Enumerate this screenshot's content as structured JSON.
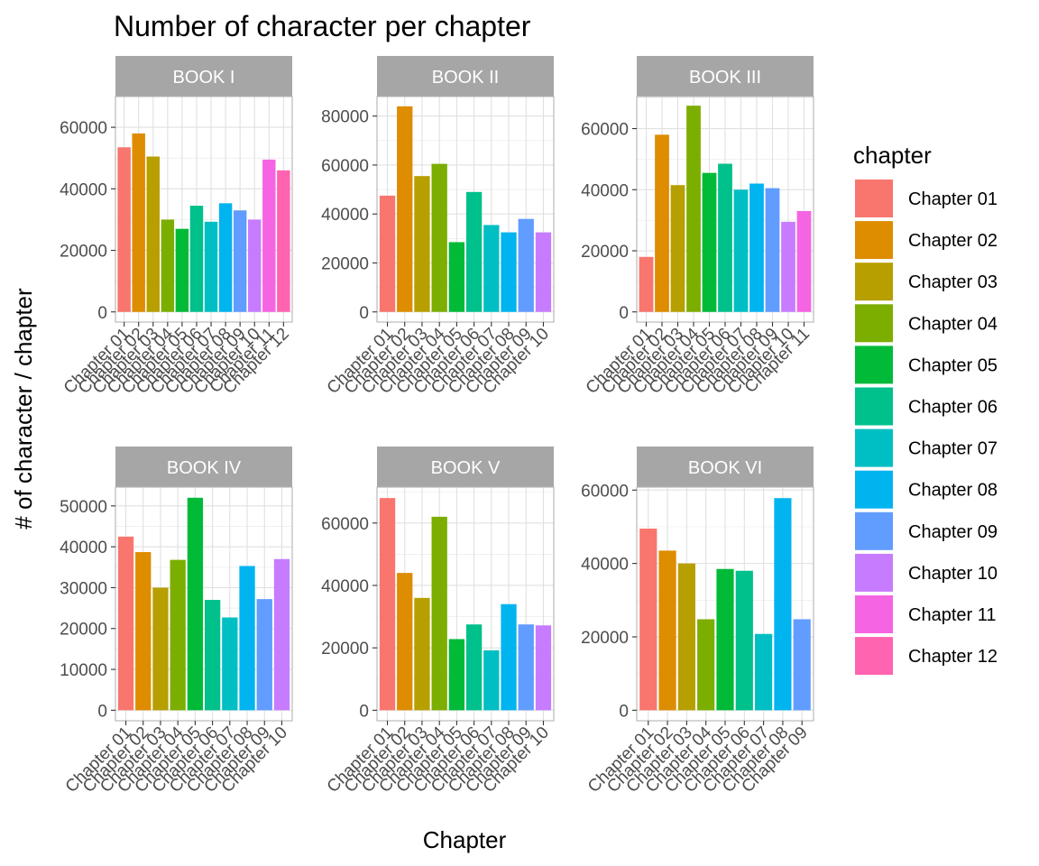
{
  "title": "Number of character per chapter",
  "xlabel": "Chapter",
  "ylabel": "# of character / chapter",
  "legend": {
    "title": "chapter",
    "entries": [
      "Chapter 01",
      "Chapter 02",
      "Chapter 03",
      "Chapter 04",
      "Chapter 05",
      "Chapter 06",
      "Chapter 07",
      "Chapter 08",
      "Chapter 09",
      "Chapter 10",
      "Chapter 11",
      "Chapter 12"
    ],
    "colors": [
      "#F8766D",
      "#DE8C00",
      "#B79F00",
      "#7CAE00",
      "#00BA38",
      "#00C08B",
      "#00BFC4",
      "#00B4F0",
      "#619CFF",
      "#C77CFF",
      "#F564E3",
      "#FF64B0"
    ]
  },
  "chart_data": [
    {
      "type": "bar",
      "facet": "BOOK I",
      "categories": [
        "Chapter 01",
        "Chapter 02",
        "Chapter 03",
        "Chapter 04",
        "Chapter 05",
        "Chapter 06",
        "Chapter 07",
        "Chapter 08",
        "Chapter 09",
        "Chapter 10",
        "Chapter 11",
        "Chapter 12"
      ],
      "values": [
        53500,
        58000,
        50500,
        30000,
        27000,
        34500,
        29300,
        35300,
        33000,
        30000,
        49500,
        46000
      ],
      "ylim": [
        0,
        70000
      ],
      "yticks": [
        0,
        20000,
        40000,
        60000
      ]
    },
    {
      "type": "bar",
      "facet": "BOOK II",
      "categories": [
        "Chapter 01",
        "Chapter 02",
        "Chapter 03",
        "Chapter 04",
        "Chapter 05",
        "Chapter 06",
        "Chapter 07",
        "Chapter 08",
        "Chapter 09",
        "Chapter 10"
      ],
      "values": [
        47500,
        84000,
        55500,
        60500,
        28500,
        49000,
        35500,
        32500,
        38000,
        32500
      ],
      "ylim": [
        0,
        88000
      ],
      "yticks": [
        0,
        20000,
        40000,
        60000,
        80000
      ]
    },
    {
      "type": "bar",
      "facet": "BOOK III",
      "categories": [
        "Chapter 01",
        "Chapter 02",
        "Chapter 03",
        "Chapter 04",
        "Chapter 05",
        "Chapter 06",
        "Chapter 07",
        "Chapter 08",
        "Chapter 09",
        "Chapter 10",
        "Chapter 11"
      ],
      "values": [
        18000,
        58000,
        41500,
        67500,
        45500,
        48500,
        40000,
        42000,
        40500,
        29500,
        33000
      ],
      "ylim": [
        0,
        70500
      ],
      "yticks": [
        0,
        20000,
        40000,
        60000
      ]
    },
    {
      "type": "bar",
      "facet": "BOOK IV",
      "categories": [
        "Chapter 01",
        "Chapter 02",
        "Chapter 03",
        "Chapter 04",
        "Chapter 05",
        "Chapter 06",
        "Chapter 07",
        "Chapter 08",
        "Chapter 09",
        "Chapter 10"
      ],
      "values": [
        42500,
        38700,
        30000,
        36800,
        52000,
        27000,
        22700,
        35300,
        27200,
        37000
      ],
      "ylim": [
        0,
        54600
      ],
      "yticks": [
        0,
        10000,
        20000,
        30000,
        40000,
        50000
      ]
    },
    {
      "type": "bar",
      "facet": "BOOK V",
      "categories": [
        "Chapter 01",
        "Chapter 02",
        "Chapter 03",
        "Chapter 04",
        "Chapter 05",
        "Chapter 06",
        "Chapter 07",
        "Chapter 08",
        "Chapter 09",
        "Chapter 10"
      ],
      "values": [
        68000,
        44000,
        36000,
        62000,
        22800,
        27500,
        19200,
        34000,
        27500,
        27200
      ],
      "ylim": [
        0,
        71500
      ],
      "yticks": [
        0,
        20000,
        40000,
        60000
      ]
    },
    {
      "type": "bar",
      "facet": "BOOK VI",
      "categories": [
        "Chapter 01",
        "Chapter 02",
        "Chapter 03",
        "Chapter 04",
        "Chapter 05",
        "Chapter 06",
        "Chapter 07",
        "Chapter 08",
        "Chapter 09"
      ],
      "values": [
        49500,
        43500,
        40000,
        24800,
        38500,
        38000,
        20800,
        57800,
        24800
      ],
      "ylim": [
        0,
        60800
      ],
      "yticks": [
        0,
        20000,
        40000,
        60000
      ]
    }
  ]
}
